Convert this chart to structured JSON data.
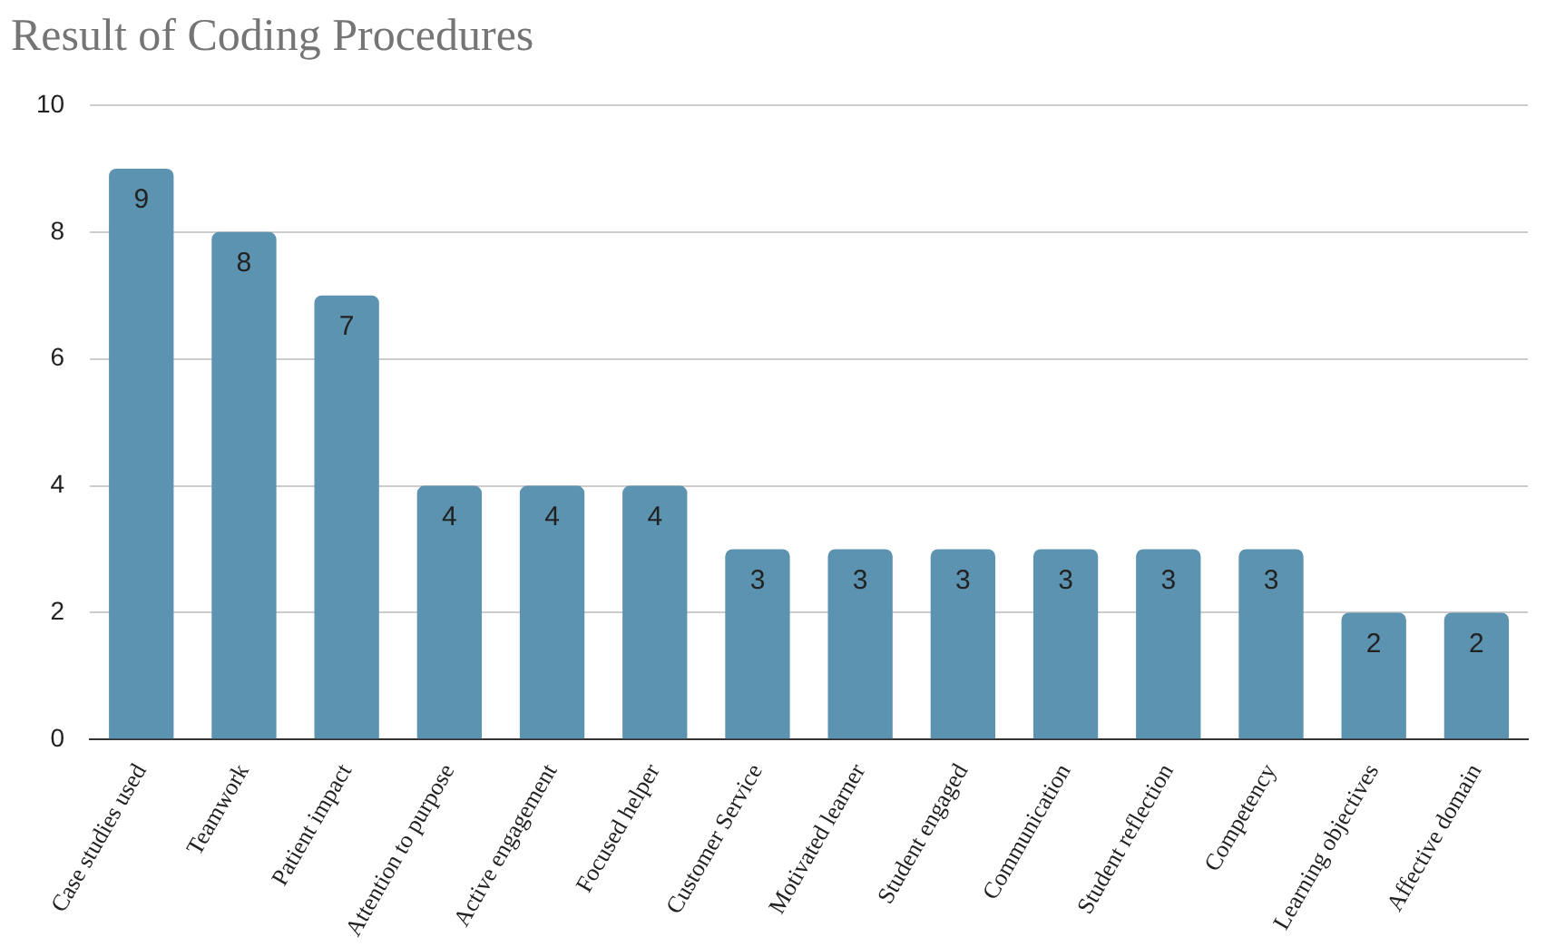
{
  "chart_data": {
    "type": "bar",
    "title": "Result of Coding Procedures",
    "categories": [
      "Case studies used",
      "Teamwork",
      "Patient impact",
      "Attention to purpose",
      "Active engagement",
      "Focused helper",
      "Customer Service",
      "Motivated learner",
      "Student engaged",
      "Communication",
      "Student reflection",
      "Competency",
      "Learning objectives",
      "Affective domain"
    ],
    "values": [
      9,
      8,
      7,
      4,
      4,
      4,
      3,
      3,
      3,
      3,
      3,
      3,
      2,
      2
    ],
    "color": "#5b93b0",
    "ylim": [
      0,
      10
    ],
    "yticks": [
      0,
      2,
      4,
      6,
      8,
      10
    ],
    "grid": "y",
    "data_labels": true,
    "legend": false
  }
}
